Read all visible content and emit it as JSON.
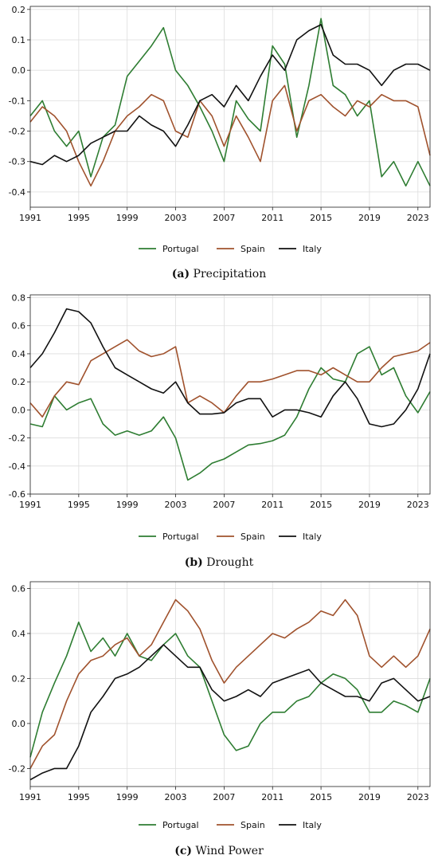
{
  "colors": {
    "Portugal": "#2e7d32",
    "Spain": "#a0522d",
    "Italy": "#111111"
  },
  "panels": [
    {
      "caption_letter": "(a)",
      "caption_text": " Precipitation",
      "chart_data": {
        "type": "line",
        "xlim": [
          1991,
          2024
        ],
        "ylim": [
          -0.45,
          0.21
        ],
        "xticks": [
          1991,
          1995,
          1999,
          2003,
          2007,
          2011,
          2015,
          2019,
          2023
        ],
        "yticks": [
          0.2,
          0.1,
          0.0,
          -0.1,
          -0.2,
          -0.3,
          -0.4
        ],
        "ytick_labels": [
          "0.2",
          "0.1",
          "0.0",
          "-0.1",
          "-0.2",
          "-0.3",
          "-0.4"
        ],
        "grid": true,
        "legend": "bottom-center",
        "series": [
          {
            "name": "Portugal",
            "x": [
              1991,
              1992,
              1993,
              1994,
              1995,
              1996,
              1997,
              1998,
              1999,
              2000,
              2001,
              2002,
              2003,
              2004,
              2005,
              2006,
              2007,
              2008,
              2009,
              2010,
              2011,
              2012,
              2013,
              2014,
              2015,
              2016,
              2017,
              2018,
              2019,
              2020,
              2021,
              2022,
              2023,
              2024
            ],
            "y": [
              -0.15,
              -0.1,
              -0.2,
              -0.25,
              -0.2,
              -0.35,
              -0.22,
              -0.18,
              -0.02,
              0.03,
              0.08,
              0.14,
              0.0,
              -0.05,
              -0.12,
              -0.2,
              -0.3,
              -0.1,
              -0.16,
              -0.2,
              0.08,
              0.02,
              -0.22,
              -0.05,
              0.17,
              -0.05,
              -0.08,
              -0.15,
              -0.1,
              -0.35,
              -0.3,
              -0.38,
              -0.3,
              -0.38
            ]
          },
          {
            "name": "Spain",
            "x": [
              1991,
              1992,
              1993,
              1994,
              1995,
              1996,
              1997,
              1998,
              1999,
              2000,
              2001,
              2002,
              2003,
              2004,
              2005,
              2006,
              2007,
              2008,
              2009,
              2010,
              2011,
              2012,
              2013,
              2014,
              2015,
              2016,
              2017,
              2018,
              2019,
              2020,
              2021,
              2022,
              2023,
              2024
            ],
            "y": [
              -0.17,
              -0.12,
              -0.15,
              -0.2,
              -0.3,
              -0.38,
              -0.3,
              -0.2,
              -0.15,
              -0.12,
              -0.08,
              -0.1,
              -0.2,
              -0.22,
              -0.1,
              -0.15,
              -0.25,
              -0.15,
              -0.22,
              -0.3,
              -0.1,
              -0.05,
              -0.2,
              -0.1,
              -0.08,
              -0.12,
              -0.15,
              -0.1,
              -0.12,
              -0.08,
              -0.1,
              -0.1,
              -0.12,
              -0.28
            ]
          },
          {
            "name": "Italy",
            "x": [
              1991,
              1992,
              1993,
              1994,
              1995,
              1996,
              1997,
              1998,
              1999,
              2000,
              2001,
              2002,
              2003,
              2004,
              2005,
              2006,
              2007,
              2008,
              2009,
              2010,
              2011,
              2012,
              2013,
              2014,
              2015,
              2016,
              2017,
              2018,
              2019,
              2020,
              2021,
              2022,
              2023,
              2024
            ],
            "y": [
              -0.3,
              -0.31,
              -0.28,
              -0.3,
              -0.28,
              -0.24,
              -0.22,
              -0.2,
              -0.2,
              -0.15,
              -0.18,
              -0.2,
              -0.25,
              -0.18,
              -0.1,
              -0.08,
              -0.12,
              -0.05,
              -0.1,
              -0.02,
              0.05,
              0.0,
              0.1,
              0.13,
              0.15,
              0.05,
              0.02,
              0.02,
              0.0,
              -0.05,
              0.0,
              0.02,
              0.02,
              0.0
            ]
          }
        ]
      }
    },
    {
      "caption_letter": "(b)",
      "caption_text": " Drought",
      "chart_data": {
        "type": "line",
        "xlim": [
          1991,
          2024
        ],
        "ylim": [
          -0.6,
          0.82
        ],
        "xticks": [
          1991,
          1995,
          1999,
          2003,
          2007,
          2011,
          2015,
          2019,
          2023
        ],
        "yticks": [
          0.8,
          0.6,
          0.4,
          0.2,
          0.0,
          -0.2,
          -0.4,
          -0.6
        ],
        "ytick_labels": [
          "0.8",
          "0.6",
          "0.4",
          "0.2",
          "0.0",
          "-0.2",
          "-0.4",
          "-0.6"
        ],
        "grid": true,
        "legend": "bottom-center",
        "series": [
          {
            "name": "Portugal",
            "x": [
              1991,
              1992,
              1993,
              1994,
              1995,
              1996,
              1997,
              1998,
              1999,
              2000,
              2001,
              2002,
              2003,
              2004,
              2005,
              2006,
              2007,
              2008,
              2009,
              2010,
              2011,
              2012,
              2013,
              2014,
              2015,
              2016,
              2017,
              2018,
              2019,
              2020,
              2021,
              2022,
              2023,
              2024
            ],
            "y": [
              -0.1,
              -0.12,
              0.1,
              0.0,
              0.05,
              0.08,
              -0.1,
              -0.18,
              -0.15,
              -0.18,
              -0.15,
              -0.05,
              -0.2,
              -0.5,
              -0.45,
              -0.38,
              -0.35,
              -0.3,
              -0.25,
              -0.24,
              -0.22,
              -0.18,
              -0.05,
              0.15,
              0.3,
              0.22,
              0.2,
              0.4,
              0.45,
              0.25,
              0.3,
              0.1,
              -0.02,
              0.13
            ]
          },
          {
            "name": "Spain",
            "x": [
              1991,
              1992,
              1993,
              1994,
              1995,
              1996,
              1997,
              1998,
              1999,
              2000,
              2001,
              2002,
              2003,
              2004,
              2005,
              2006,
              2007,
              2008,
              2009,
              2010,
              2011,
              2012,
              2013,
              2014,
              2015,
              2016,
              2017,
              2018,
              2019,
              2020,
              2021,
              2022,
              2023,
              2024
            ],
            "y": [
              0.05,
              -0.05,
              0.1,
              0.2,
              0.18,
              0.35,
              0.4,
              0.45,
              0.5,
              0.42,
              0.38,
              0.4,
              0.45,
              0.05,
              0.1,
              0.05,
              -0.02,
              0.1,
              0.2,
              0.2,
              0.22,
              0.25,
              0.28,
              0.28,
              0.25,
              0.3,
              0.25,
              0.2,
              0.2,
              0.3,
              0.38,
              0.4,
              0.42,
              0.48
            ]
          },
          {
            "name": "Italy",
            "x": [
              1991,
              1992,
              1993,
              1994,
              1995,
              1996,
              1997,
              1998,
              1999,
              2000,
              2001,
              2002,
              2003,
              2004,
              2005,
              2006,
              2007,
              2008,
              2009,
              2010,
              2011,
              2012,
              2013,
              2014,
              2015,
              2016,
              2017,
              2018,
              2019,
              2020,
              2021,
              2022,
              2023,
              2024
            ],
            "y": [
              0.3,
              0.4,
              0.55,
              0.72,
              0.7,
              0.62,
              0.45,
              0.3,
              0.25,
              0.2,
              0.15,
              0.12,
              0.2,
              0.05,
              -0.03,
              -0.03,
              -0.02,
              0.05,
              0.08,
              0.08,
              -0.05,
              0.0,
              0.0,
              -0.02,
              -0.05,
              0.1,
              0.2,
              0.08,
              -0.1,
              -0.12,
              -0.1,
              0.0,
              0.15,
              0.4
            ]
          }
        ]
      }
    },
    {
      "caption_letter": "(c)",
      "caption_text": " Wind Power",
      "chart_data": {
        "type": "line",
        "xlim": [
          1991,
          2024
        ],
        "ylim": [
          -0.28,
          0.63
        ],
        "xticks": [
          1991,
          1995,
          1999,
          2003,
          2007,
          2011,
          2015,
          2019,
          2023
        ],
        "yticks": [
          0.6,
          0.4,
          0.2,
          0.0,
          -0.2
        ],
        "ytick_labels": [
          "0.6",
          "0.4",
          "0.2",
          "0.0",
          "-0.2"
        ],
        "grid": true,
        "legend": "bottom-center",
        "series": [
          {
            "name": "Portugal",
            "x": [
              1991,
              1992,
              1993,
              1994,
              1995,
              1996,
              1997,
              1998,
              1999,
              2000,
              2001,
              2002,
              2003,
              2004,
              2005,
              2006,
              2007,
              2008,
              2009,
              2010,
              2011,
              2012,
              2013,
              2014,
              2015,
              2016,
              2017,
              2018,
              2019,
              2020,
              2021,
              2022,
              2023,
              2024
            ],
            "y": [
              -0.15,
              0.05,
              0.18,
              0.3,
              0.45,
              0.32,
              0.38,
              0.3,
              0.4,
              0.3,
              0.28,
              0.35,
              0.4,
              0.3,
              0.25,
              0.1,
              -0.05,
              -0.12,
              -0.1,
              0.0,
              0.05,
              0.05,
              0.1,
              0.12,
              0.18,
              0.22,
              0.2,
              0.15,
              0.05,
              0.05,
              0.1,
              0.08,
              0.05,
              0.2
            ]
          },
          {
            "name": "Spain",
            "x": [
              1991,
              1992,
              1993,
              1994,
              1995,
              1996,
              1997,
              1998,
              1999,
              2000,
              2001,
              2002,
              2003,
              2004,
              2005,
              2006,
              2007,
              2008,
              2009,
              2010,
              2011,
              2012,
              2013,
              2014,
              2015,
              2016,
              2017,
              2018,
              2019,
              2020,
              2021,
              2022,
              2023,
              2024
            ],
            "y": [
              -0.2,
              -0.1,
              -0.05,
              0.1,
              0.22,
              0.28,
              0.3,
              0.35,
              0.38,
              0.3,
              0.35,
              0.45,
              0.55,
              0.5,
              0.42,
              0.28,
              0.18,
              0.25,
              0.3,
              0.35,
              0.4,
              0.38,
              0.42,
              0.45,
              0.5,
              0.48,
              0.55,
              0.48,
              0.3,
              0.25,
              0.3,
              0.25,
              0.3,
              0.42
            ]
          },
          {
            "name": "Italy",
            "x": [
              1991,
              1992,
              1993,
              1994,
              1995,
              1996,
              1997,
              1998,
              1999,
              2000,
              2001,
              2002,
              2003,
              2004,
              2005,
              2006,
              2007,
              2008,
              2009,
              2010,
              2011,
              2012,
              2013,
              2014,
              2015,
              2016,
              2017,
              2018,
              2019,
              2020,
              2021,
              2022,
              2023,
              2024
            ],
            "y": [
              -0.25,
              -0.22,
              -0.2,
              -0.2,
              -0.1,
              0.05,
              0.12,
              0.2,
              0.22,
              0.25,
              0.3,
              0.35,
              0.3,
              0.25,
              0.25,
              0.15,
              0.1,
              0.12,
              0.15,
              0.12,
              0.18,
              0.2,
              0.22,
              0.24,
              0.18,
              0.15,
              0.12,
              0.12,
              0.1,
              0.18,
              0.2,
              0.15,
              0.1,
              0.12
            ]
          }
        ]
      }
    }
  ]
}
